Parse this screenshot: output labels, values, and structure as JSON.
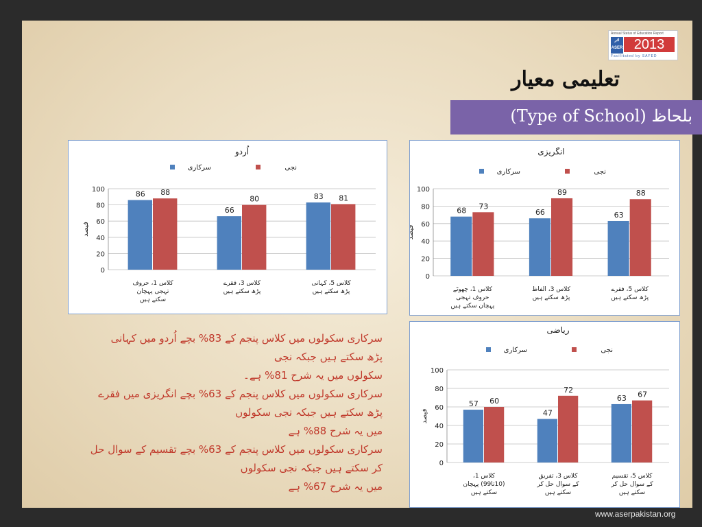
{
  "logo": {
    "top": "Annual Status of Education Report",
    "aser": "ASER",
    "urdu": "اثر",
    "year": "2013",
    "facilitated": "Facilitated by SAFED"
  },
  "title": "تعلیمی معیار",
  "banner": "بلحاظ (Type of School)",
  "colors": {
    "government": "#4f81bd",
    "private": "#c0504d"
  },
  "legend": {
    "government": "سرکاری",
    "private": "نجی"
  },
  "chart_data": [
    {
      "type": "bar",
      "title": "اُردو",
      "ylabel": "فیصد",
      "ylim": [
        0,
        100
      ],
      "yticks": [
        0,
        20,
        40,
        60,
        80,
        100
      ],
      "categories": [
        "کلاس 1، حروف تہجی پہچان سکتے ہیں",
        "کلاس 3، فقرے پڑھ سکتے ہیں",
        "کلاس 5، کہانی پڑھ سکتے ہیں"
      ],
      "series": [
        {
          "name": "سرکاری",
          "values": [
            86,
            66,
            83
          ]
        },
        {
          "name": "نجی",
          "values": [
            88,
            80,
            81
          ]
        }
      ]
    },
    {
      "type": "bar",
      "title": "انگریزی",
      "ylabel": "فیصد",
      "ylim": [
        0,
        100
      ],
      "yticks": [
        0,
        20,
        40,
        60,
        80,
        100
      ],
      "categories": [
        "کلاس 1، چھوٹے حروف تہجی پہچان سکتے ہیں",
        "کلاس 3، الفاظ پڑھ سکتے ہیں",
        "کلاس 5، فقرے پڑھ سکتے ہیں"
      ],
      "series": [
        {
          "name": "سرکاری",
          "values": [
            68,
            66,
            63
          ]
        },
        {
          "name": "نجی",
          "values": [
            73,
            89,
            88
          ]
        }
      ]
    },
    {
      "type": "bar",
      "title": "ریاضی",
      "ylabel": "فیصد",
      "ylim": [
        0,
        100
      ],
      "yticks": [
        0,
        20,
        40,
        60,
        80,
        100
      ],
      "categories": [
        "کلاس 1، (10تا99) پہچان سکتے ہیں",
        "کلاس 3، تفریق کے سوال حل کر سکتے ہیں",
        "کلاس 5، تقسیم کے سوال حل کر سکتے ہیں"
      ],
      "series": [
        {
          "name": "سرکاری",
          "values": [
            57,
            47,
            63
          ]
        },
        {
          "name": "نجی",
          "values": [
            60,
            72,
            67
          ]
        }
      ]
    }
  ],
  "body_lines": [
    "سرکاری سکولوں میں کلاس پنجم کے 83% بچے اُردو میں کہانی",
    "پڑھ سکتے ہیں جبکہ نجی",
    "سکولوں میں یہ شرح 81% ہے۔",
    "سرکاری سکولوں میں کلاس پنجم کے 63% بچے انگریزی میں فقرے",
    "پڑھ سکتے ہیں جبکہ نجی سکولوں",
    "میں یہ شرح 88% ہے",
    "سرکاری سکولوں میں کلاس پنجم کے 63% بچے تقسیم کے سوال حل",
    "کر سکتے ہیں جبکہ نجی سکولوں",
    "میں یہ شرح 67% ہے"
  ],
  "url": "www.aserpakistan.org"
}
